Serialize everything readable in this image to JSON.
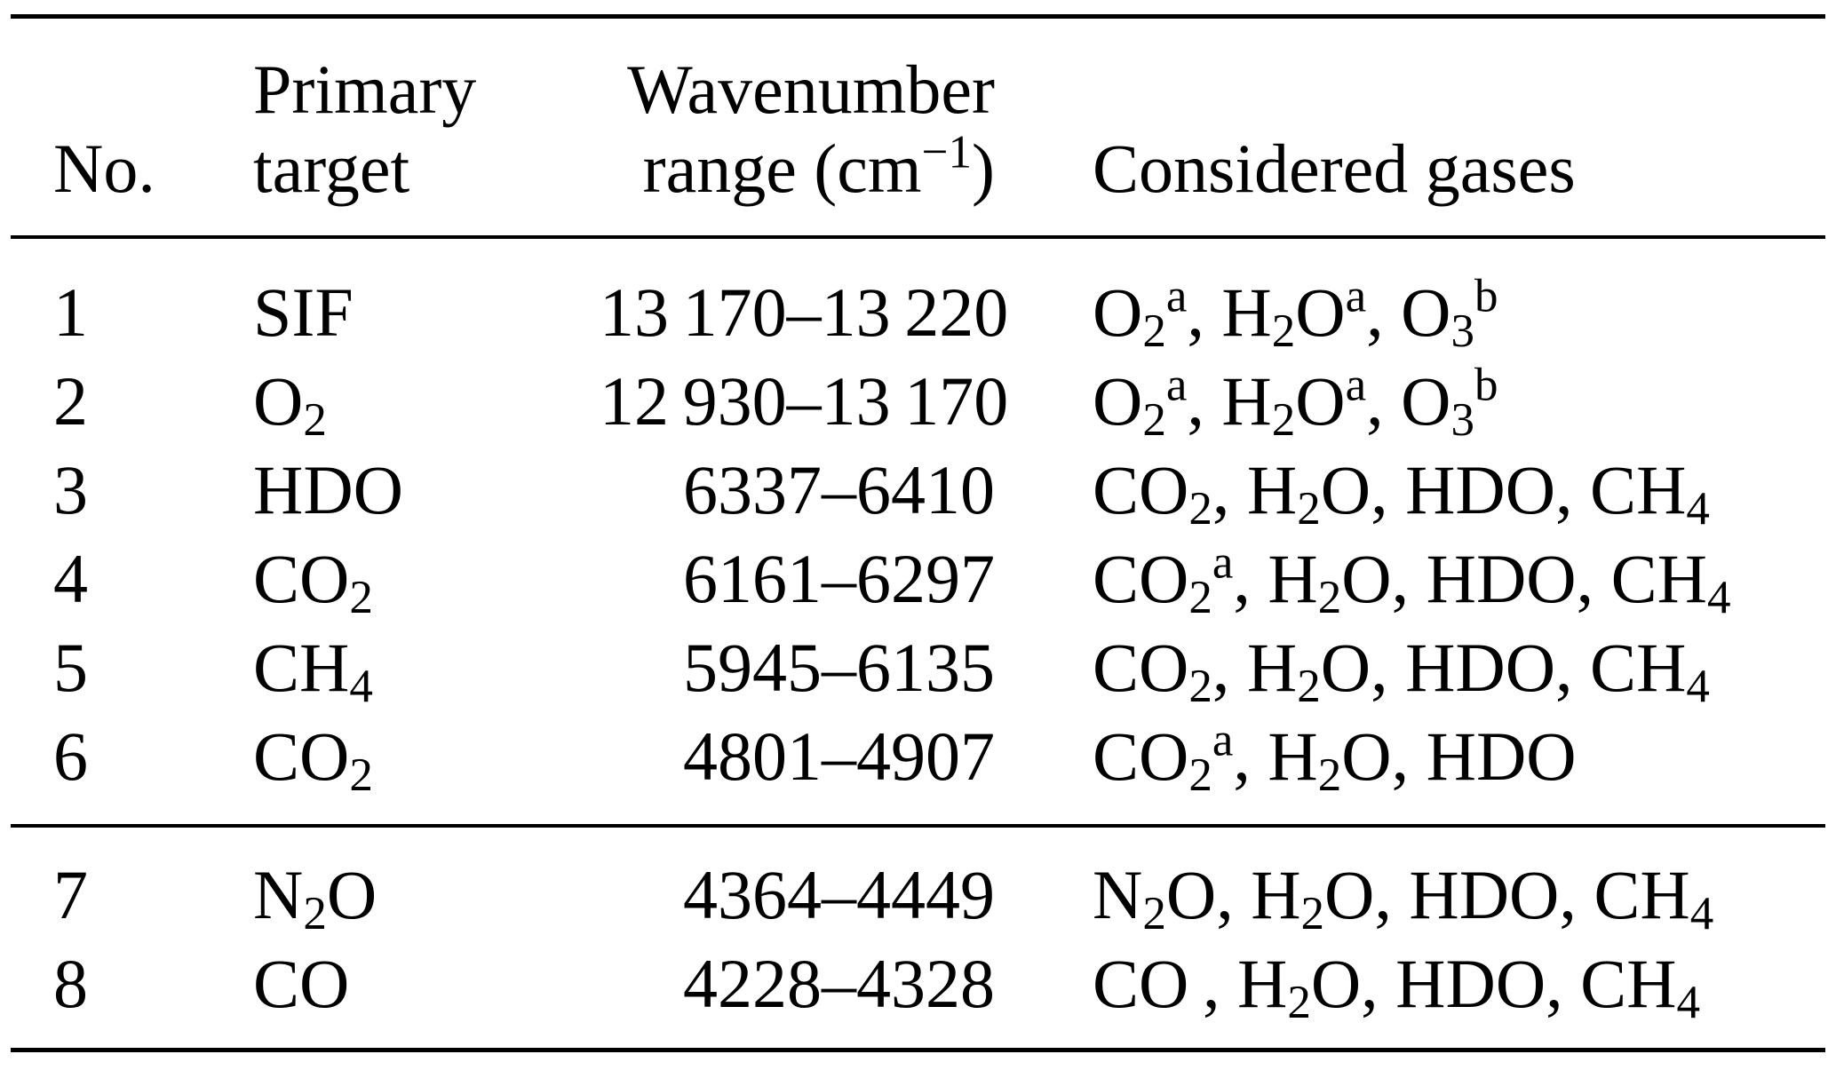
{
  "colors": {
    "background": "#ffffff",
    "text": "#000000",
    "rule": "#000000"
  },
  "table": {
    "header": {
      "col1": "No.",
      "col2_line1": "Primary",
      "col2_line2": "target",
      "col3_line1": "Wavenumber",
      "col3_line2_html": "range (cm<sup>−1</sup>)",
      "col4": "Considered gases"
    },
    "rows": [
      {
        "no": "1",
        "target_html": "SIF",
        "range": "13 170–13 220",
        "gases_html": "O<sub>2</sub><sup>a</sup>, H<sub>2</sub>O<sup>a</sup>, O<sub>3</sub><sup>b</sup>"
      },
      {
        "no": "2",
        "target_html": "O<sub>2</sub>",
        "range": "12 930–13 170",
        "gases_html": "O<sub>2</sub><sup>a</sup>, H<sub>2</sub>O<sup>a</sup>, O<sub>3</sub><sup>b</sup>"
      },
      {
        "no": "3",
        "target_html": "HDO",
        "range": "6337–6410",
        "gases_html": "CO<sub>2</sub>, H<sub>2</sub>O, HDO, CH<sub>4</sub>"
      },
      {
        "no": "4",
        "target_html": "CO<sub>2</sub>",
        "range": "6161–6297",
        "gases_html": "CO<sub>2</sub><sup>a</sup>, H<sub>2</sub>O, HDO, CH<sub>4</sub>"
      },
      {
        "no": "5",
        "target_html": "CH<sub>4</sub>",
        "range": "5945–6135",
        "gases_html": "CO<sub>2</sub>, H<sub>2</sub>O, HDO, CH<sub>4</sub>"
      },
      {
        "no": "6",
        "target_html": "CO<sub>2</sub>",
        "range": "4801–4907",
        "gases_html": "CO<sub>2</sub><sup>a</sup>, H<sub>2</sub>O, HDO"
      },
      {
        "no": "7",
        "target_html": "N<sub>2</sub>O",
        "range": "4364–4449",
        "gases_html": "N<sub>2</sub>O, H<sub>2</sub>O, HDO, CH<sub>4</sub>"
      },
      {
        "no": "8",
        "target_html": "CO",
        "range": "4228–4328",
        "gases_html": "CO , H<sub>2</sub>O, HDO, CH<sub>4</sub>"
      }
    ]
  }
}
